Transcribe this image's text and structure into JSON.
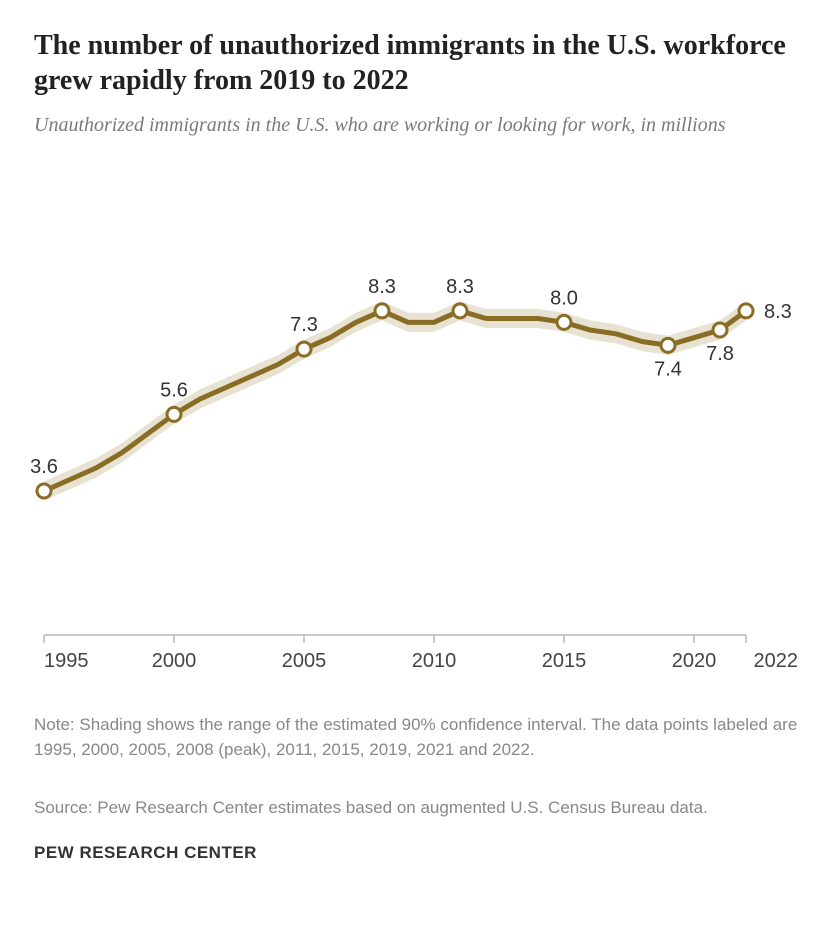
{
  "title": "The number of unauthorized immigrants in the U.S. workforce grew rapidly from 2019 to 2022",
  "subtitle": "Unauthorized immigrants in the U.S. who are working or looking for work, in millions",
  "chart": {
    "type": "line",
    "xlim": [
      1995,
      2022
    ],
    "ylim": [
      0,
      12
    ],
    "line_color": "#8a6d24",
    "line_width": 5,
    "ci_color": "#e8e2d2",
    "marker_fill": "#ffffff",
    "marker_stroke": "#8a6d24",
    "marker_stroke_width": 3,
    "marker_radius": 7,
    "background_color": "#ffffff",
    "axis_color": "#b8b8b8",
    "label_fontsize": 20,
    "label_color": "#333333",
    "tick_fontsize": 20,
    "series": [
      {
        "year": 1995,
        "value": 3.6,
        "labeled": true,
        "label_pos": "above"
      },
      {
        "year": 1996,
        "value": 3.9,
        "labeled": false
      },
      {
        "year": 1997,
        "value": 4.2,
        "labeled": false
      },
      {
        "year": 1998,
        "value": 4.6,
        "labeled": false
      },
      {
        "year": 1999,
        "value": 5.1,
        "labeled": false
      },
      {
        "year": 2000,
        "value": 5.6,
        "labeled": true,
        "label_pos": "above"
      },
      {
        "year": 2001,
        "value": 6.0,
        "labeled": false
      },
      {
        "year": 2002,
        "value": 6.3,
        "labeled": false
      },
      {
        "year": 2003,
        "value": 6.6,
        "labeled": false
      },
      {
        "year": 2004,
        "value": 6.9,
        "labeled": false
      },
      {
        "year": 2005,
        "value": 7.3,
        "labeled": true,
        "label_pos": "above"
      },
      {
        "year": 2006,
        "value": 7.6,
        "labeled": false
      },
      {
        "year": 2007,
        "value": 8.0,
        "labeled": false
      },
      {
        "year": 2008,
        "value": 8.3,
        "labeled": true,
        "label_pos": "above"
      },
      {
        "year": 2009,
        "value": 8.0,
        "labeled": false
      },
      {
        "year": 2010,
        "value": 8.0,
        "labeled": false
      },
      {
        "year": 2011,
        "value": 8.3,
        "labeled": true,
        "label_pos": "above"
      },
      {
        "year": 2012,
        "value": 8.1,
        "labeled": false
      },
      {
        "year": 2013,
        "value": 8.1,
        "labeled": false
      },
      {
        "year": 2014,
        "value": 8.1,
        "labeled": false
      },
      {
        "year": 2015,
        "value": 8.0,
        "labeled": true,
        "label_pos": "above"
      },
      {
        "year": 2016,
        "value": 7.8,
        "labeled": false
      },
      {
        "year": 2017,
        "value": 7.7,
        "labeled": false
      },
      {
        "year": 2018,
        "value": 7.5,
        "labeled": false
      },
      {
        "year": 2019,
        "value": 7.4,
        "labeled": true,
        "label_pos": "below"
      },
      {
        "year": 2020,
        "value": 7.6,
        "labeled": false
      },
      {
        "year": 2021,
        "value": 7.8,
        "labeled": true,
        "label_pos": "below"
      },
      {
        "year": 2022,
        "value": 8.3,
        "labeled": true,
        "label_pos": "right"
      }
    ],
    "xticks": [
      {
        "year": 1995,
        "label": "1995"
      },
      {
        "year": 2000,
        "label": "2000"
      },
      {
        "year": 2005,
        "label": "2005"
      },
      {
        "year": 2010,
        "label": "2010"
      },
      {
        "year": 2015,
        "label": "2015"
      },
      {
        "year": 2020,
        "label": "2020"
      },
      {
        "year": 2022,
        "label": "2022"
      }
    ]
  },
  "note_text": "Note: Shading shows the range of the estimated 90% confidence interval. The data points labeled are 1995, 2000, 2005, 2008 (peak), 2011, 2015, 2019, 2021 and 2022.",
  "source_text": "Source: Pew Research Center estimates based on augmented U.S. Census Bureau data.",
  "attribution": "PEW RESEARCH CENTER"
}
